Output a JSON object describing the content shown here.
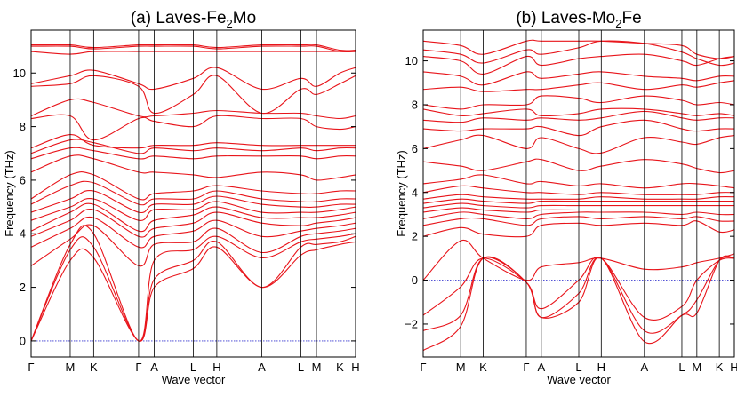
{
  "colors": {
    "bands": "#e8141a",
    "zero_line": "#3a3ad0",
    "frame": "#000000"
  },
  "chart_data": [
    {
      "type": "line",
      "title_prefix": "(a) Laves-Fe",
      "title_sub": "2",
      "title_suffix": "Mo",
      "xlabel": "Wave vector",
      "ylabel": "Frequency (THz)",
      "ylim": [
        -0.6,
        11.6
      ],
      "yticks": [
        0,
        2,
        4,
        6,
        8,
        10
      ],
      "kpoints": [
        {
          "label": "Γ",
          "x": 0
        },
        {
          "label": "M",
          "x": 1
        },
        {
          "label": "K",
          "x": 1.6
        },
        {
          "label": "Γ",
          "x": 2.75
        },
        {
          "label": "A",
          "x": 3.15
        },
        {
          "label": "L",
          "x": 4.15
        },
        {
          "label": "H",
          "x": 4.75
        },
        {
          "label": "A",
          "x": 5.9
        },
        {
          "label": "L",
          "x": 6.9
        },
        {
          "label": "M",
          "x": 7.3
        },
        {
          "label": "K",
          "x": 7.9
        },
        {
          "label": "H",
          "x": 8.3
        }
      ],
      "zero_line": 0,
      "series": [
        {
          "values": [
            0,
            3.0,
            3.1,
            0,
            2.0,
            2.7,
            3.5,
            2.0,
            3.2,
            3.4,
            3.6,
            3.7
          ]
        },
        {
          "values": [
            0,
            3.4,
            3.5,
            0,
            2.3,
            3.0,
            3.7,
            2.0,
            3.5,
            3.6,
            3.7,
            3.9
          ]
        },
        {
          "values": [
            0,
            3.6,
            4.0,
            0,
            3.0,
            3.4,
            3.9,
            3.1,
            3.7,
            3.8,
            3.9,
            4.0
          ]
        },
        {
          "values": [
            2.8,
            3.8,
            4.3,
            2.8,
            3.6,
            3.7,
            4.2,
            3.3,
            3.9,
            4.0,
            4.1,
            4.2
          ]
        },
        {
          "values": [
            3.5,
            4.2,
            4.6,
            3.5,
            3.9,
            4.1,
            4.5,
            3.9,
            4.1,
            4.2,
            4.3,
            4.4
          ]
        },
        {
          "values": [
            3.9,
            4.5,
            4.9,
            3.9,
            4.2,
            4.4,
            4.8,
            4.4,
            4.3,
            4.4,
            4.5,
            4.6
          ]
        },
        {
          "values": [
            4.1,
            4.8,
            5.1,
            4.1,
            4.5,
            4.7,
            5.0,
            4.6,
            4.6,
            4.6,
            4.7,
            4.8
          ]
        },
        {
          "values": [
            4.5,
            5.0,
            5.3,
            4.5,
            4.9,
            4.9,
            5.2,
            4.8,
            4.8,
            4.8,
            4.9,
            5.0
          ]
        },
        {
          "values": [
            4.8,
            5.3,
            5.6,
            4.8,
            5.1,
            5.1,
            5.4,
            5.1,
            5.0,
            5.0,
            5.1,
            5.1
          ]
        },
        {
          "values": [
            5.1,
            5.8,
            5.9,
            5.1,
            5.3,
            5.3,
            5.6,
            5.3,
            5.2,
            5.2,
            5.3,
            5.3
          ]
        },
        {
          "values": [
            5.3,
            6.2,
            6.2,
            5.3,
            5.5,
            5.6,
            5.8,
            5.6,
            5.5,
            5.5,
            5.6,
            5.6
          ]
        },
        {
          "values": [
            6.3,
            6.9,
            6.8,
            6.3,
            6.3,
            6.2,
            6.1,
            6.3,
            6.2,
            6.0,
            6.1,
            6.2
          ]
        },
        {
          "values": [
            6.8,
            7.2,
            7.1,
            6.8,
            6.9,
            6.8,
            6.9,
            6.9,
            6.9,
            6.8,
            6.9,
            6.9
          ]
        },
        {
          "values": [
            7.0,
            7.5,
            7.4,
            7.0,
            7.2,
            7.1,
            7.2,
            7.1,
            7.2,
            7.1,
            7.2,
            7.2
          ]
        },
        {
          "values": [
            7.2,
            7.7,
            7.3,
            7.2,
            7.3,
            7.3,
            7.4,
            7.3,
            7.3,
            7.3,
            7.3,
            7.3
          ]
        },
        {
          "values": [
            8.3,
            8.4,
            7.5,
            8.3,
            8.2,
            8.0,
            8.4,
            8.3,
            8.3,
            8.0,
            7.9,
            8.0
          ]
        },
        {
          "values": [
            8.4,
            9.0,
            8.9,
            8.4,
            8.4,
            8.5,
            8.6,
            8.5,
            8.5,
            8.4,
            8.3,
            8.4
          ]
        },
        {
          "values": [
            9.5,
            9.6,
            9.9,
            9.5,
            8.5,
            9.2,
            9.9,
            8.5,
            9.4,
            9.2,
            9.6,
            9.9
          ]
        },
        {
          "values": [
            9.6,
            9.9,
            10.1,
            9.6,
            9.4,
            9.8,
            10.2,
            9.4,
            9.8,
            9.5,
            10.0,
            10.2
          ]
        },
        {
          "values": [
            10.8,
            10.7,
            10.8,
            10.8,
            10.8,
            10.8,
            10.8,
            10.8,
            10.8,
            10.8,
            10.8,
            10.8
          ]
        },
        {
          "values": [
            11.0,
            11.0,
            10.9,
            11.0,
            11.0,
            11.0,
            10.9,
            11.0,
            11.0,
            11.0,
            10.8,
            10.8
          ]
        },
        {
          "values": [
            11.05,
            11.05,
            10.95,
            11.05,
            11.05,
            11.05,
            10.95,
            11.05,
            11.05,
            11.05,
            10.85,
            10.85
          ]
        }
      ]
    },
    {
      "type": "line",
      "title_prefix": "(b) Laves-Mo",
      "title_sub": "2",
      "title_suffix": "Fe",
      "xlabel": "Wave vector",
      "ylabel": "Frequency (THz)",
      "ylim": [
        -3.5,
        11.4
      ],
      "yticks": [
        -2,
        0,
        2,
        4,
        6,
        8,
        10
      ],
      "kpoints": [
        {
          "label": "Γ",
          "x": 0
        },
        {
          "label": "M",
          "x": 1
        },
        {
          "label": "K",
          "x": 1.6
        },
        {
          "label": "Γ",
          "x": 2.75
        },
        {
          "label": "A",
          "x": 3.15
        },
        {
          "label": "L",
          "x": 4.15
        },
        {
          "label": "H",
          "x": 4.75
        },
        {
          "label": "A",
          "x": 5.9
        },
        {
          "label": "L",
          "x": 6.9
        },
        {
          "label": "M",
          "x": 7.3
        },
        {
          "label": "K",
          "x": 7.9
        },
        {
          "label": "H",
          "x": 8.3
        }
      ],
      "zero_line": 0,
      "series": [
        {
          "values": [
            -3.2,
            -2.1,
            1.0,
            -0.1,
            -1.7,
            -1.0,
            1.0,
            -2.8,
            -1.6,
            -1.5,
            0.9,
            1.0
          ]
        },
        {
          "values": [
            -2.3,
            -1.6,
            1.0,
            -0.1,
            -1.7,
            -0.6,
            1.0,
            -2.3,
            -1.6,
            -0.9,
            0.9,
            1.0
          ]
        },
        {
          "values": [
            -1.6,
            -0.3,
            1.0,
            -0.1,
            -1.3,
            0.0,
            1.0,
            -1.7,
            -1.2,
            0.0,
            0.9,
            1.0
          ]
        },
        {
          "values": [
            0.0,
            1.8,
            1.0,
            0.0,
            0.6,
            0.8,
            1.0,
            0.5,
            0.6,
            0.8,
            1.0,
            1.2
          ]
        },
        {
          "values": [
            2.0,
            2.4,
            2.1,
            2.0,
            2.5,
            2.6,
            2.5,
            2.6,
            2.5,
            2.7,
            2.2,
            2.3
          ]
        },
        {
          "values": [
            2.5,
            2.8,
            2.8,
            2.5,
            2.8,
            2.9,
            2.8,
            2.9,
            2.8,
            2.9,
            2.7,
            2.7
          ]
        },
        {
          "values": [
            2.8,
            3.1,
            3.0,
            2.8,
            3.0,
            3.1,
            3.1,
            3.1,
            3.0,
            3.1,
            3.0,
            3.0
          ]
        },
        {
          "values": [
            3.1,
            3.3,
            3.2,
            3.1,
            3.2,
            3.2,
            3.2,
            3.2,
            3.2,
            3.2,
            3.2,
            3.2
          ]
        },
        {
          "values": [
            3.3,
            3.5,
            3.4,
            3.3,
            3.4,
            3.4,
            3.4,
            3.4,
            3.4,
            3.4,
            3.4,
            3.4
          ]
        },
        {
          "values": [
            3.5,
            3.7,
            3.6,
            3.5,
            3.6,
            3.6,
            3.6,
            3.6,
            3.6,
            3.6,
            3.6,
            3.6
          ]
        },
        {
          "values": [
            3.7,
            3.9,
            3.8,
            3.7,
            3.7,
            3.7,
            3.8,
            3.7,
            3.7,
            3.7,
            3.8,
            3.8
          ]
        },
        {
          "values": [
            4.0,
            4.3,
            4.2,
            4.0,
            4.0,
            3.9,
            4.0,
            3.9,
            3.9,
            3.9,
            4.0,
            4.0
          ]
        },
        {
          "values": [
            4.4,
            4.6,
            4.8,
            4.4,
            4.5,
            4.3,
            4.4,
            4.2,
            4.4,
            4.4,
            4.3,
            4.2
          ]
        },
        {
          "values": [
            5.4,
            5.2,
            5.0,
            5.4,
            5.5,
            5.0,
            5.2,
            5.5,
            5.3,
            5.1,
            4.9,
            5.0
          ]
        },
        {
          "values": [
            6.0,
            6.4,
            6.6,
            6.0,
            6.5,
            6.0,
            5.8,
            6.5,
            6.3,
            6.2,
            6.5,
            6.6
          ]
        },
        {
          "values": [
            6.9,
            6.8,
            6.9,
            6.9,
            7.0,
            6.6,
            7.0,
            7.3,
            6.9,
            6.8,
            6.9,
            6.9
          ]
        },
        {
          "values": [
            7.3,
            7.2,
            7.4,
            7.3,
            7.4,
            7.3,
            7.4,
            7.7,
            7.4,
            7.3,
            7.4,
            7.4
          ]
        },
        {
          "values": [
            7.8,
            7.5,
            7.6,
            7.8,
            7.5,
            7.6,
            7.8,
            7.8,
            7.6,
            7.5,
            7.6,
            7.5
          ]
        },
        {
          "values": [
            8.0,
            7.8,
            8.0,
            8.0,
            8.4,
            8.3,
            8.1,
            8.4,
            8.2,
            8.0,
            8.1,
            8.0
          ]
        },
        {
          "values": [
            8.7,
            8.8,
            8.6,
            8.7,
            8.7,
            8.9,
            9.0,
            8.7,
            8.9,
            8.8,
            9.0,
            9.1
          ]
        },
        {
          "values": [
            9.5,
            9.3,
            8.9,
            9.5,
            9.2,
            9.4,
            9.5,
            9.3,
            9.2,
            9.1,
            9.3,
            9.3
          ]
        },
        {
          "values": [
            10.2,
            10.0,
            9.4,
            10.2,
            9.8,
            10.1,
            10.2,
            10.3,
            10.0,
            9.8,
            10.1,
            10.2
          ]
        },
        {
          "values": [
            10.5,
            10.3,
            9.9,
            10.5,
            10.3,
            10.6,
            10.9,
            10.8,
            10.4,
            10.1,
            9.8,
            9.9
          ]
        },
        {
          "values": [
            10.9,
            10.7,
            10.3,
            10.9,
            10.9,
            10.9,
            10.9,
            10.8,
            10.7,
            10.3,
            10.1,
            10.2
          ]
        }
      ]
    }
  ]
}
